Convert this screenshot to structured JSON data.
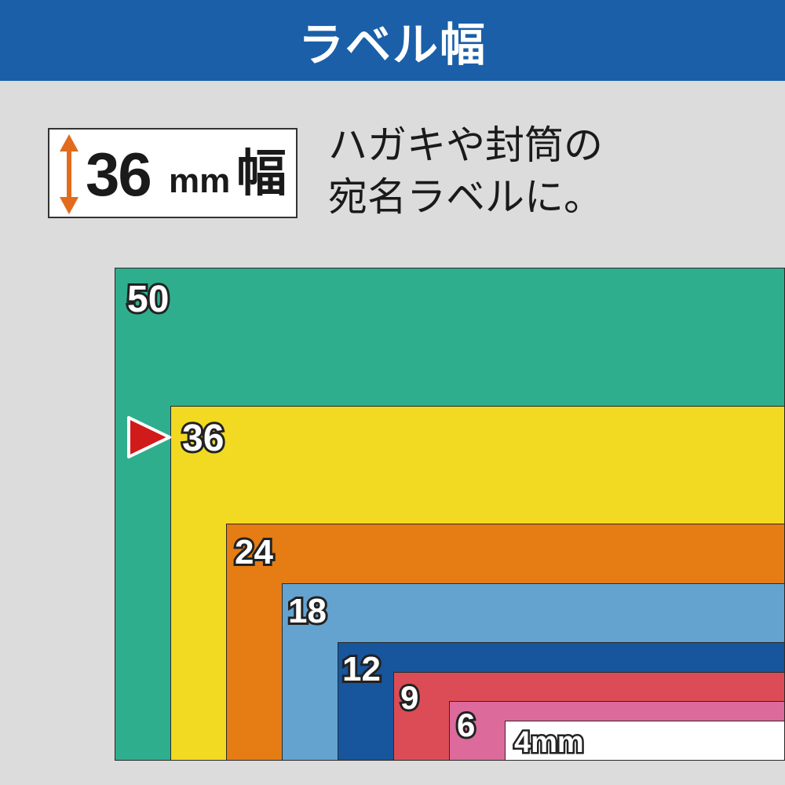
{
  "header": {
    "title": "ラベル幅"
  },
  "width_box": {
    "number": "36",
    "unit": "mm",
    "kanji": "幅"
  },
  "description": {
    "line1": "ハガキや封筒の",
    "line2": "宛名ラベルに。"
  },
  "colors": {
    "header": "#1a5fa8",
    "arrow": "#e26b1e",
    "marker": "#d11a1a"
  },
  "icons": {
    "width_arrow": "double-arrow-vertical-icon",
    "marker": "triangle-pointer-icon"
  },
  "tapes": [
    {
      "label": "50",
      "color": "#2fae8e"
    },
    {
      "label": "36",
      "color": "#f2da22"
    },
    {
      "label": "24",
      "color": "#e57c14"
    },
    {
      "label": "18",
      "color": "#64a3cf"
    },
    {
      "label": "12",
      "color": "#17559c"
    },
    {
      "label": "9",
      "color": "#dc4c56"
    },
    {
      "label": "6",
      "color": "#dc6a9b"
    },
    {
      "label": "4mm",
      "color": "#ffffff"
    }
  ]
}
